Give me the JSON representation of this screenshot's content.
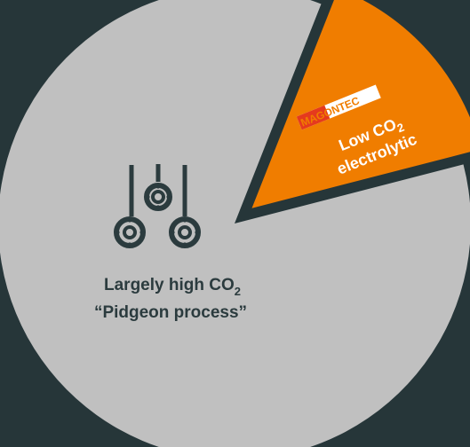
{
  "colors": {
    "background": "#263639",
    "slice_grey": "#c0c0c0",
    "slice_orange": "#f07d00",
    "grey_label": "#2b3b3e",
    "orange_label": "#ffffff"
  },
  "chart_data": {
    "type": "pie",
    "title": "",
    "slices": [
      {
        "value": 85,
        "color": "#c0c0c0",
        "label_line1_main": "Largely high CO",
        "label_line1_sub": "2",
        "label_line2": "“Pidgeon process”",
        "icon": "retort-furnace-icon"
      },
      {
        "value": 15,
        "color": "#f07d00",
        "exploded": true,
        "brand_logo": "MAGONTEC",
        "label_line1_main": "Low CO",
        "label_line1_sub": "2",
        "label_line2": "electrolytic"
      }
    ]
  }
}
